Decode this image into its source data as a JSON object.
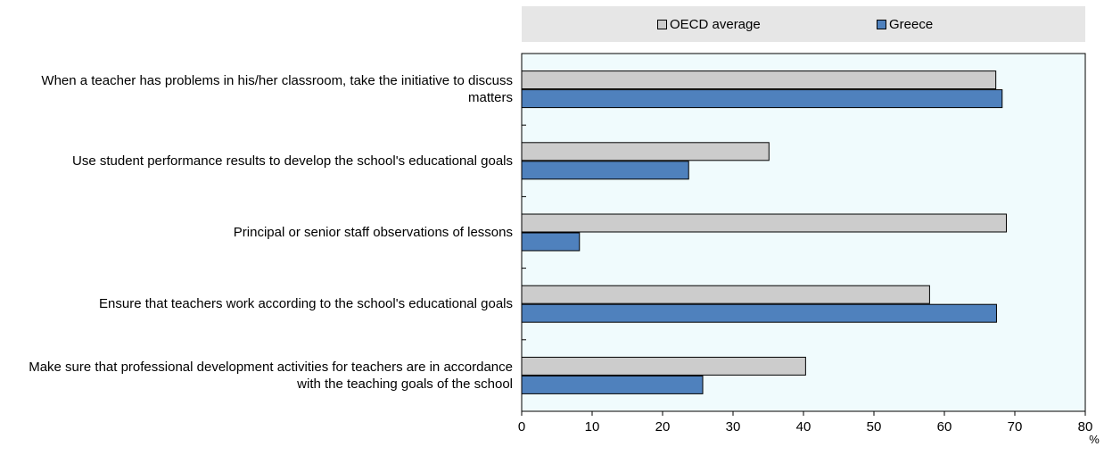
{
  "chart_data": {
    "type": "bar",
    "orientation": "horizontal",
    "categories": [
      "When a teacher has problems in his/her classroom,  take the initiative to discuss matters",
      "Use student performance results to develop the school's educational goals",
      "Principal or senior staff observations of lessons",
      "Ensure that teachers work according to the school's educational goals",
      "Make sure that professional development activities for teachers are in accordance with the teaching goals of the school"
    ],
    "category_lines": [
      [
        "When a teacher has problems in his/her classroom,  take the initiative to discuss",
        "matters"
      ],
      [
        "Use student performance results to develop the school's educational goals"
      ],
      [
        "Principal or senior staff observations of lessons"
      ],
      [
        "Ensure that teachers work according to the school's educational goals"
      ],
      [
        "Make sure that professional development activities for teachers are in accordance",
        "with the teaching goals of the school"
      ]
    ],
    "series": [
      {
        "name": "OECD average",
        "color": "#cccccc",
        "values": [
          67.3,
          35.1,
          68.8,
          57.9,
          40.3
        ]
      },
      {
        "name": "Greece",
        "color": "#4f81bd",
        "values": [
          68.2,
          23.7,
          8.2,
          67.4,
          25.7
        ]
      }
    ],
    "xlim": [
      0,
      80
    ],
    "xticks": [
      "0",
      "10",
      "20",
      "30",
      "40",
      "50",
      "60",
      "70",
      "80"
    ],
    "xunit": "%",
    "plot_background": "#f0fbfd",
    "grid": false,
    "legend_position": "top"
  }
}
